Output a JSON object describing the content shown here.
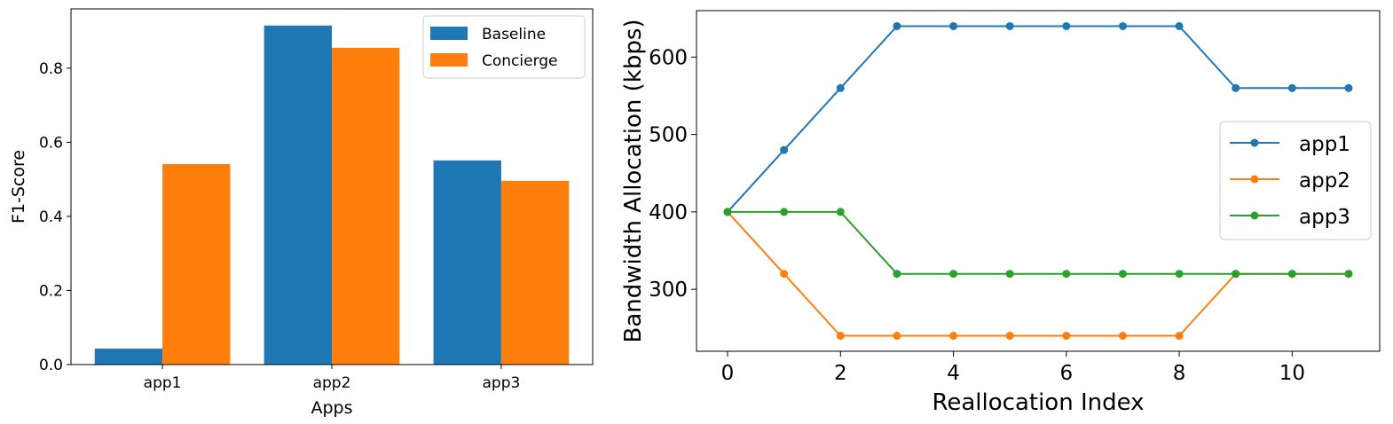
{
  "chart_data": [
    {
      "type": "bar",
      "categories": [
        "app1",
        "app2",
        "app3"
      ],
      "series": [
        {
          "name": "Baseline",
          "values": [
            0.043,
            0.915,
            0.551
          ],
          "color": "#1f77b4"
        },
        {
          "name": "Concierge",
          "values": [
            0.541,
            0.855,
            0.496
          ],
          "color": "#ff7f0e"
        }
      ],
      "xlabel": "Apps",
      "ylabel": "F1-Score",
      "ylim": [
        0,
        0.96
      ],
      "yticks": [
        "0.0",
        "0.2",
        "0.4",
        "0.6",
        "0.8"
      ],
      "legend": "top-right",
      "grid": false
    },
    {
      "type": "line",
      "x": [
        0,
        1,
        2,
        3,
        4,
        5,
        6,
        7,
        8,
        9,
        10,
        11
      ],
      "series": [
        {
          "name": "app1",
          "values": [
            400,
            480,
            560,
            640,
            640,
            640,
            640,
            640,
            640,
            560,
            560,
            560
          ],
          "color": "#1f77b4"
        },
        {
          "name": "app2",
          "values": [
            400,
            320,
            240,
            240,
            240,
            240,
            240,
            240,
            240,
            320,
            320,
            320
          ],
          "color": "#ff7f0e"
        },
        {
          "name": "app3",
          "values": [
            400,
            400,
            400,
            320,
            320,
            320,
            320,
            320,
            320,
            320,
            320,
            320
          ],
          "color": "#2ca02c"
        }
      ],
      "xlabel": "Reallocation Index",
      "ylabel": "Bandwidth Allocation (kbps)",
      "xlim": [
        -0.55,
        11.55
      ],
      "ylim": [
        220,
        660
      ],
      "xticks": [
        "0",
        "2",
        "4",
        "6",
        "8",
        "10"
      ],
      "yticks": [
        "300",
        "400",
        "500",
        "600"
      ],
      "legend": "center-right",
      "grid": false
    }
  ]
}
